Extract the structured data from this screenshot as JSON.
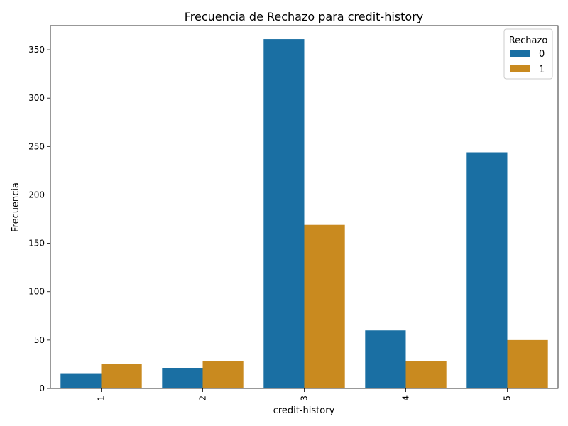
{
  "chart_data": {
    "type": "bar",
    "title": "Frecuencia de Rechazo para credit-history",
    "xlabel": "credit-history",
    "ylabel": "Frecuencia",
    "categories": [
      "1",
      "2",
      "3",
      "4",
      "5"
    ],
    "series": [
      {
        "name": "0",
        "color": "#1a6fa3",
        "values": [
          15,
          21,
          361,
          60,
          244
        ]
      },
      {
        "name": "1",
        "color": "#c98a1f",
        "values": [
          25,
          28,
          169,
          28,
          50
        ]
      }
    ],
    "ylim": [
      0,
      375
    ],
    "yticks": [
      0,
      50,
      100,
      150,
      200,
      250,
      300,
      350
    ],
    "legend": {
      "title": "Rechazo",
      "placement": "top-right"
    },
    "grid": false
  }
}
